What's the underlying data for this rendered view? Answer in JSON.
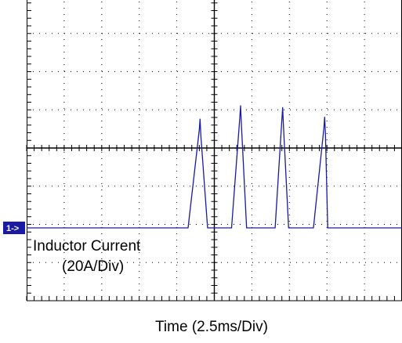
{
  "chart_data": {
    "type": "line",
    "xlabel": "Time (2.5ms/Div)",
    "divisions": {
      "x": 10,
      "y": 8
    },
    "channel_marker": "1->",
    "ylim": [
      -80,
      80
    ],
    "xlim": [
      0,
      25
    ],
    "colors": {
      "trace": "#1a1aa6",
      "marker_bg": "#1a1aa6",
      "graticule": "#000000"
    },
    "series": [
      {
        "name": "Inductor Current",
        "scale": "(20A/Div)",
        "pulses": [
          {
            "start": 10.75,
            "peak_time": 11.55,
            "end": 12.05,
            "peak": 57
          },
          {
            "start": 13.65,
            "peak_time": 14.25,
            "end": 14.65,
            "peak": 64
          },
          {
            "start": 16.55,
            "peak_time": 17.05,
            "end": 17.45,
            "peak": 63
          },
          {
            "start": 19.1,
            "peak_time": 19.85,
            "end": 20.05,
            "peak": 58
          }
        ]
      }
    ]
  }
}
